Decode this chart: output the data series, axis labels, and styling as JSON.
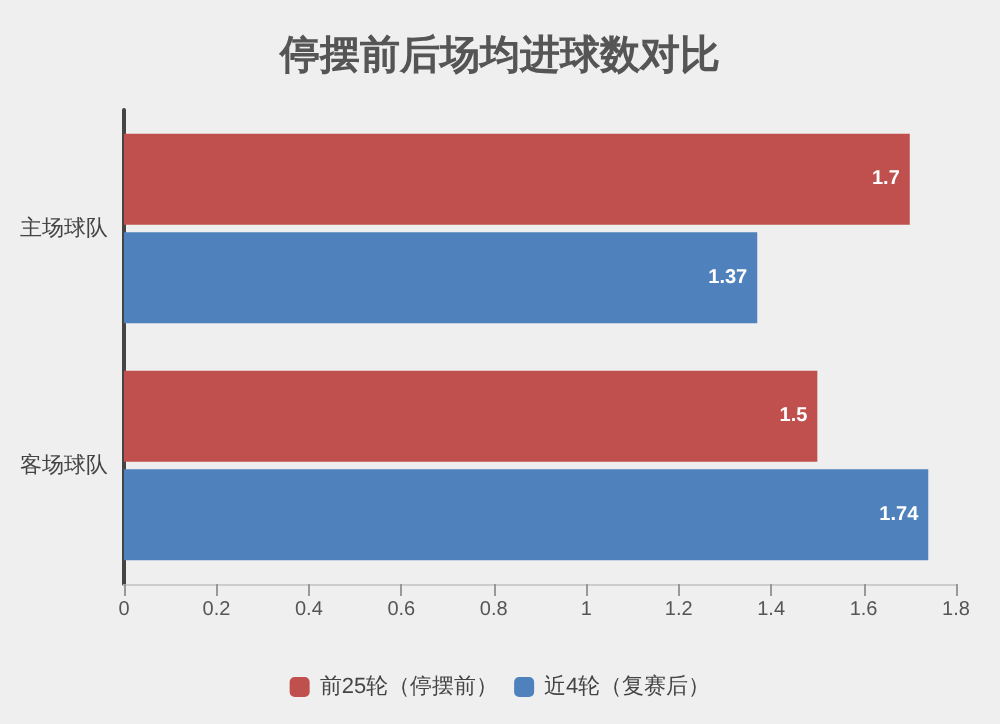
{
  "chart_data": {
    "type": "bar",
    "orientation": "horizontal",
    "title": "停摆前后场均进球数对比",
    "categories": [
      "主场球队",
      "客场球队"
    ],
    "series": [
      {
        "name": "前25轮（停摆前）",
        "color": "#c0504d",
        "values": [
          1.7,
          1.5
        ]
      },
      {
        "name": "近4轮（复赛后）",
        "color": "#4f81bd",
        "values": [
          1.37,
          1.74
        ]
      }
    ],
    "xlim": [
      0,
      1.8
    ],
    "xticks": [
      0,
      0.2,
      0.4,
      0.6,
      0.8,
      1,
      1.2,
      1.4,
      1.6,
      1.8
    ],
    "data_labels": true,
    "grid": false,
    "legend": "bottom"
  }
}
